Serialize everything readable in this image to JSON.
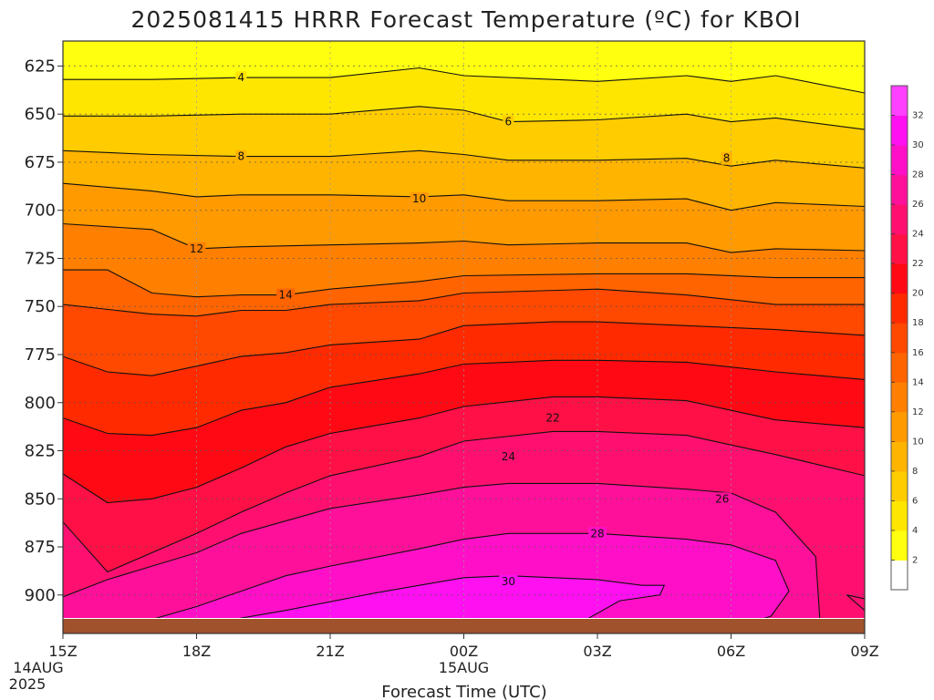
{
  "chart_data": {
    "type": "heatmap",
    "title": "2025081415 HRRR Forecast Temperature (ºC) for KBOI",
    "xlabel": "Forecast Time (UTC)",
    "ylabel": "",
    "x_ticks": [
      {
        "hour": 0,
        "label": "15Z",
        "sub1": "14AUG",
        "sub2": "2025"
      },
      {
        "hour": 3,
        "label": "18Z",
        "sub1": "",
        "sub2": ""
      },
      {
        "hour": 6,
        "label": "21Z",
        "sub1": "",
        "sub2": ""
      },
      {
        "hour": 9,
        "label": "00Z",
        "sub1": "15AUG",
        "sub2": ""
      },
      {
        "hour": 12,
        "label": "03Z",
        "sub1": "",
        "sub2": ""
      },
      {
        "hour": 15,
        "label": "06Z",
        "sub1": "",
        "sub2": ""
      },
      {
        "hour": 18,
        "label": "09Z",
        "sub1": "",
        "sub2": ""
      }
    ],
    "xlim": [
      0,
      18
    ],
    "ylim": [
      920,
      612
    ],
    "y_unit": "hPa",
    "y_ticks": [
      625,
      650,
      675,
      700,
      725,
      750,
      775,
      800,
      825,
      850,
      875,
      900
    ],
    "grid": true,
    "colorbar": {
      "ticks": [
        2,
        4,
        6,
        8,
        10,
        12,
        14,
        16,
        18,
        20,
        22,
        24,
        26,
        28,
        30,
        32
      ],
      "colors": [
        "#ffffff",
        "#ffff10",
        "#ffe600",
        "#ffcc00",
        "#ffb400",
        "#ff9a00",
        "#ff8000",
        "#ff6400",
        "#ff4800",
        "#ff2a00",
        "#ff0a14",
        "#ff1046",
        "#ff1070",
        "#ff109a",
        "#ff10c8",
        "#ff10f0",
        "#ff40ff"
      ]
    },
    "contour_labels": [
      {
        "value": "4",
        "hour": 4.0,
        "p": 631
      },
      {
        "value": "6",
        "hour": 10.0,
        "p": 654
      },
      {
        "value": "8",
        "hour": 4.0,
        "p": 672
      },
      {
        "value": "8",
        "hour": 14.9,
        "p": 673
      },
      {
        "value": "10",
        "hour": 8.0,
        "p": 694
      },
      {
        "value": "12",
        "hour": 3.0,
        "p": 720
      },
      {
        "value": "14",
        "hour": 5.0,
        "p": 744
      },
      {
        "value": "22",
        "hour": 11.0,
        "p": 808
      },
      {
        "value": "24",
        "hour": 10.0,
        "p": 828
      },
      {
        "value": "26",
        "hour": 14.8,
        "p": 850
      },
      {
        "value": "28",
        "hour": 12.0,
        "p": 868
      },
      {
        "value": "30",
        "hour": 10.0,
        "p": 893
      }
    ],
    "contours": [
      {
        "value": 4,
        "points": [
          [
            0,
            632
          ],
          [
            2,
            632
          ],
          [
            4,
            631
          ],
          [
            6,
            631
          ],
          [
            8,
            626
          ],
          [
            9,
            630
          ],
          [
            12,
            633
          ],
          [
            14,
            630
          ],
          [
            15,
            633
          ],
          [
            16,
            630
          ],
          [
            18,
            639
          ]
        ]
      },
      {
        "value": 6,
        "points": [
          [
            0,
            651
          ],
          [
            2,
            651
          ],
          [
            4,
            650
          ],
          [
            6,
            650
          ],
          [
            8,
            646
          ],
          [
            9,
            648
          ],
          [
            10,
            654
          ],
          [
            12,
            653
          ],
          [
            14,
            650
          ],
          [
            15,
            654
          ],
          [
            16,
            652
          ],
          [
            18,
            658
          ]
        ]
      },
      {
        "value": 8,
        "points": [
          [
            0,
            669
          ],
          [
            2,
            671
          ],
          [
            4,
            672
          ],
          [
            6,
            672
          ],
          [
            8,
            669
          ],
          [
            9,
            671
          ],
          [
            10,
            674
          ],
          [
            12,
            674
          ],
          [
            14,
            673
          ],
          [
            15,
            677
          ],
          [
            16,
            674
          ],
          [
            18,
            678
          ]
        ]
      },
      {
        "value": 10,
        "points": [
          [
            0,
            686
          ],
          [
            2,
            690
          ],
          [
            3,
            693
          ],
          [
            4,
            692
          ],
          [
            6,
            692
          ],
          [
            8,
            693
          ],
          [
            9,
            692
          ],
          [
            10,
            695
          ],
          [
            12,
            695
          ],
          [
            14,
            694
          ],
          [
            15,
            700
          ],
          [
            16,
            696
          ],
          [
            18,
            698
          ]
        ]
      },
      {
        "value": 12,
        "points": [
          [
            0,
            707
          ],
          [
            2,
            710
          ],
          [
            3,
            720
          ],
          [
            4,
            719
          ],
          [
            6,
            718
          ],
          [
            8,
            717
          ],
          [
            9,
            716
          ],
          [
            10,
            718
          ],
          [
            12,
            717
          ],
          [
            14,
            717
          ],
          [
            15,
            722
          ],
          [
            16,
            720
          ],
          [
            18,
            721
          ]
        ]
      },
      {
        "value": 14,
        "points": [
          [
            0,
            731
          ],
          [
            1,
            731
          ],
          [
            2,
            743
          ],
          [
            3,
            745
          ],
          [
            4,
            744
          ],
          [
            5,
            744
          ],
          [
            6,
            741
          ],
          [
            8,
            737
          ],
          [
            9,
            734
          ],
          [
            12,
            733
          ],
          [
            14,
            733
          ],
          [
            16,
            735
          ],
          [
            18,
            735
          ]
        ]
      },
      {
        "value": 16,
        "points": [
          [
            0,
            749
          ],
          [
            2,
            754
          ],
          [
            3,
            755
          ],
          [
            4,
            752
          ],
          [
            5,
            752
          ],
          [
            6,
            749
          ],
          [
            8,
            747
          ],
          [
            9,
            743
          ],
          [
            12,
            741
          ],
          [
            14,
            744
          ],
          [
            16,
            749
          ],
          [
            18,
            749
          ]
        ]
      },
      {
        "value": 18,
        "points": [
          [
            0,
            776
          ],
          [
            1,
            784
          ],
          [
            2,
            786
          ],
          [
            3,
            781
          ],
          [
            4,
            776
          ],
          [
            5,
            774
          ],
          [
            6,
            770
          ],
          [
            8,
            767
          ],
          [
            9,
            760
          ],
          [
            11,
            758
          ],
          [
            12,
            758
          ],
          [
            14,
            760
          ],
          [
            16,
            762
          ],
          [
            18,
            765
          ]
        ]
      },
      {
        "value": 20,
        "points": [
          [
            0,
            808
          ],
          [
            1,
            816
          ],
          [
            2,
            817
          ],
          [
            3,
            813
          ],
          [
            4,
            804
          ],
          [
            5,
            800
          ],
          [
            6,
            792
          ],
          [
            8,
            785
          ],
          [
            9,
            780
          ],
          [
            11,
            778
          ],
          [
            12,
            778
          ],
          [
            14,
            779
          ],
          [
            16,
            784
          ],
          [
            18,
            788
          ]
        ]
      },
      {
        "value": 22,
        "points": [
          [
            0,
            837
          ],
          [
            1,
            852
          ],
          [
            2,
            850
          ],
          [
            3,
            844
          ],
          [
            4,
            834
          ],
          [
            5,
            823
          ],
          [
            6,
            816
          ],
          [
            8,
            808
          ],
          [
            9,
            802
          ],
          [
            11,
            797
          ],
          [
            12,
            797
          ],
          [
            14,
            799
          ],
          [
            15,
            804
          ],
          [
            16,
            809
          ],
          [
            18,
            813
          ]
        ]
      },
      {
        "value": 24,
        "points": [
          [
            0,
            862
          ],
          [
            1,
            888
          ],
          [
            3,
            868
          ],
          [
            4,
            857
          ],
          [
            5,
            847
          ],
          [
            6,
            838
          ],
          [
            8,
            828
          ],
          [
            9,
            820
          ],
          [
            11,
            815
          ],
          [
            12,
            815
          ],
          [
            14,
            817
          ],
          [
            15,
            822
          ],
          [
            16,
            827
          ],
          [
            18,
            838
          ]
        ]
      },
      {
        "value": 26,
        "points": [
          [
            0,
            901
          ],
          [
            1,
            892
          ],
          [
            2,
            885
          ],
          [
            3,
            878
          ],
          [
            4,
            868
          ],
          [
            6,
            855
          ],
          [
            8,
            848
          ],
          [
            9,
            844
          ],
          [
            10,
            842
          ],
          [
            12,
            842
          ],
          [
            14,
            845
          ],
          [
            15,
            847
          ],
          [
            16,
            857
          ],
          [
            16.9,
            880
          ],
          [
            17.0,
            915
          ]
        ]
      },
      {
        "value": 28,
        "points": [
          [
            1.5,
            916
          ],
          [
            3,
            906
          ],
          [
            4,
            898
          ],
          [
            5,
            890
          ],
          [
            6,
            885
          ],
          [
            8,
            876
          ],
          [
            9,
            871
          ],
          [
            10,
            868
          ],
          [
            12,
            868
          ],
          [
            14,
            871
          ],
          [
            15,
            874
          ],
          [
            16,
            882
          ],
          [
            16.3,
            898
          ],
          [
            15.9,
            911
          ],
          [
            15.5,
            914
          ]
        ]
      },
      {
        "value": 30,
        "points": [
          [
            3,
            916
          ],
          [
            5,
            908
          ],
          [
            7,
            899
          ],
          [
            8,
            895
          ],
          [
            9,
            891
          ],
          [
            10,
            890
          ],
          [
            12,
            892
          ],
          [
            13,
            895
          ],
          [
            13.5,
            895
          ],
          [
            13.4,
            900
          ],
          [
            12.5,
            903
          ],
          [
            11.5,
            916
          ]
        ]
      },
      {
        "value": 20,
        "points": [
          [
            18,
            908
          ],
          [
            17.6,
            900
          ],
          [
            17.6,
            900
          ],
          [
            18,
            902
          ]
        ]
      }
    ]
  }
}
